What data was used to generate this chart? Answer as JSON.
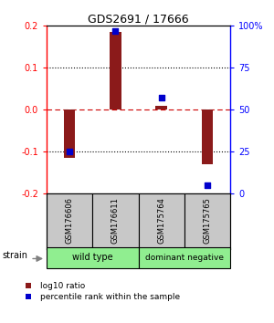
{
  "title": "GDS2691 / 17666",
  "samples": [
    "GSM176606",
    "GSM176611",
    "GSM175764",
    "GSM175765"
  ],
  "log10_ratio": [
    -0.115,
    0.185,
    0.01,
    -0.13
  ],
  "percentile_rank": [
    25,
    97,
    57,
    5
  ],
  "ylim_left": [
    -0.2,
    0.2
  ],
  "ylim_right": [
    0,
    100
  ],
  "yticks_left": [
    -0.2,
    -0.1,
    0.0,
    0.1,
    0.2
  ],
  "yticks_right": [
    0,
    25,
    50,
    75,
    100
  ],
  "ytick_labels_right": [
    "0",
    "25",
    "50",
    "75",
    "100%"
  ],
  "dotted_lines": [
    -0.1,
    0.1
  ],
  "zero_line_color": "#cc0000",
  "bar_color": "#8b1a1a",
  "dot_color": "#0000cc",
  "strain_label": "strain",
  "legend_red_label": "log10 ratio",
  "legend_blue_label": "percentile rank within the sample",
  "bar_width": 0.25,
  "group1_label": "wild type",
  "group2_label": "dominant negative",
  "group_color": "#90ee90",
  "sample_box_color": "#c8c8c8"
}
